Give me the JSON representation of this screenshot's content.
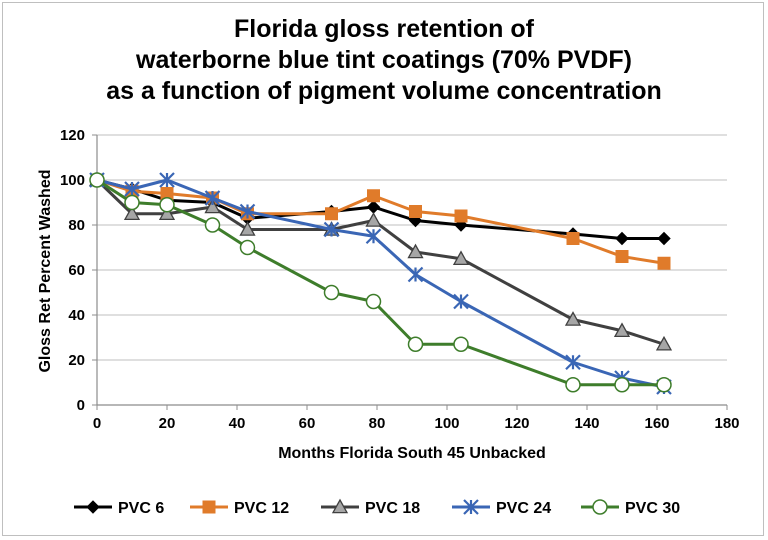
{
  "chart_data": {
    "type": "line",
    "title_lines": [
      "Florida gloss retention of",
      "waterborne blue tint coatings (70% PVDF)",
      "as a function of pigment volume concentration"
    ],
    "xlabel": "Months Florida South 45 Unbacked",
    "ylabel": "Gloss Ret Percent Washed",
    "xlim": [
      0,
      180
    ],
    "ylim": [
      0,
      120
    ],
    "xticks": [
      0,
      20,
      40,
      60,
      80,
      100,
      120,
      140,
      160,
      180
    ],
    "yticks": [
      0,
      20,
      40,
      60,
      80,
      100,
      120
    ],
    "grid": "horizontal",
    "legend_position": "bottom",
    "series": [
      {
        "name": "PVC 6",
        "color": "#000000",
        "marker": "diamond",
        "points": [
          [
            0,
            100
          ],
          [
            10,
            96
          ],
          [
            20,
            91
          ],
          [
            33,
            90
          ],
          [
            43,
            83
          ],
          [
            67,
            86
          ],
          [
            79,
            88
          ],
          [
            91,
            82
          ],
          [
            104,
            80
          ],
          [
            136,
            76
          ],
          [
            150,
            74
          ],
          [
            162,
            74
          ]
        ]
      },
      {
        "name": "PVC 12",
        "color": "#e07b2a",
        "marker": "square",
        "points": [
          [
            0,
            100
          ],
          [
            10,
            95
          ],
          [
            20,
            94
          ],
          [
            33,
            92
          ],
          [
            43,
            85
          ],
          [
            67,
            85
          ],
          [
            79,
            93
          ],
          [
            91,
            86
          ],
          [
            104,
            84
          ],
          [
            136,
            74
          ],
          [
            150,
            66
          ],
          [
            162,
            63
          ]
        ]
      },
      {
        "name": "PVC 18",
        "color": "#404040",
        "marker": "triangle",
        "points": [
          [
            0,
            100
          ],
          [
            10,
            85
          ],
          [
            20,
            85
          ],
          [
            33,
            88
          ],
          [
            43,
            78
          ],
          [
            67,
            78
          ],
          [
            79,
            82
          ],
          [
            91,
            68
          ],
          [
            104,
            65
          ],
          [
            136,
            38
          ],
          [
            150,
            33
          ],
          [
            162,
            27
          ]
        ]
      },
      {
        "name": "PVC 24",
        "color": "#3a66b5",
        "marker": "x-star",
        "points": [
          [
            0,
            100
          ],
          [
            10,
            96
          ],
          [
            20,
            100
          ],
          [
            33,
            92
          ],
          [
            43,
            86
          ],
          [
            67,
            78
          ],
          [
            79,
            75
          ],
          [
            91,
            58
          ],
          [
            104,
            46
          ],
          [
            136,
            19
          ],
          [
            150,
            12
          ],
          [
            162,
            8
          ]
        ]
      },
      {
        "name": "PVC 30",
        "color": "#3e7d2b",
        "marker": "circle",
        "points": [
          [
            0,
            100
          ],
          [
            10,
            90
          ],
          [
            20,
            89
          ],
          [
            33,
            80
          ],
          [
            43,
            70
          ],
          [
            67,
            50
          ],
          [
            79,
            46
          ],
          [
            91,
            27
          ],
          [
            104,
            27
          ],
          [
            136,
            9
          ],
          [
            150,
            9
          ],
          [
            162,
            9
          ]
        ]
      }
    ]
  }
}
